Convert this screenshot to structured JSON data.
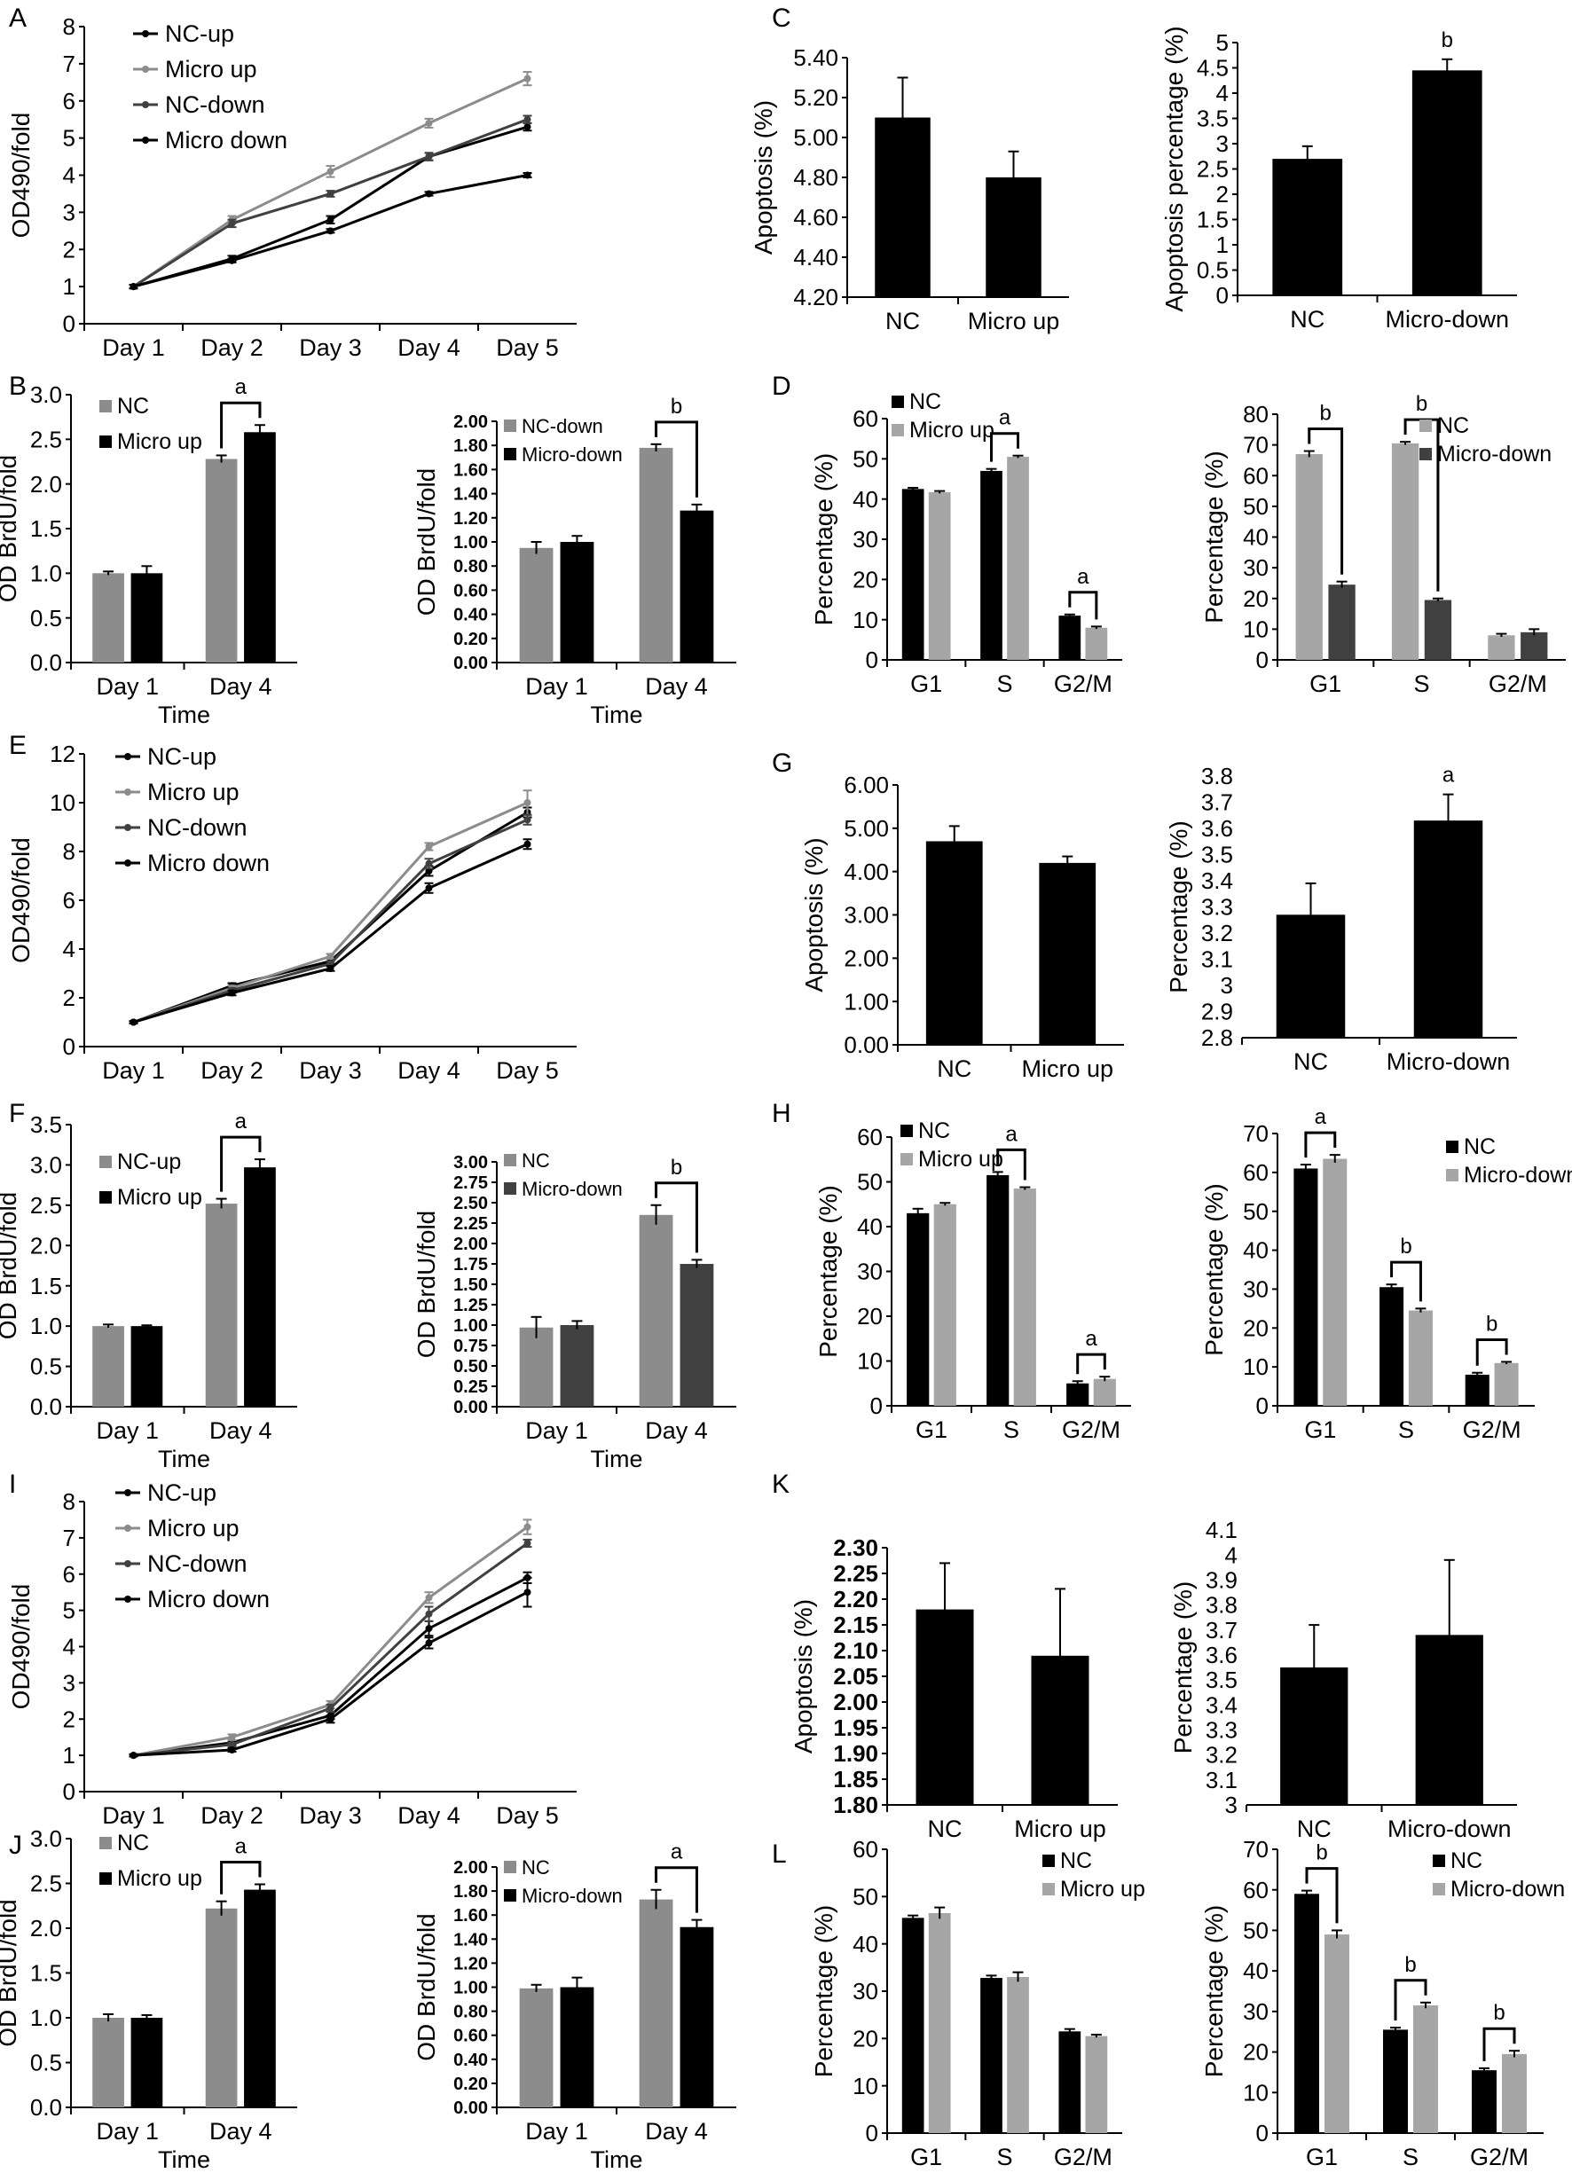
{
  "colors": {
    "black": "#000000",
    "gray": "#8c8c8c",
    "lightgray": "#a6a6a6",
    "dark": "#404040"
  },
  "chart_data": [
    {
      "id": "A",
      "panel_label": "A",
      "type": "line",
      "categories": [
        "Day 1",
        "Day 2",
        "Day 3",
        "Day 4",
        "Day 5"
      ],
      "ylabel": "OD490/fold",
      "ylim": [
        0,
        8
      ],
      "yticks": [
        "0",
        "1",
        "2",
        "3",
        "4",
        "5",
        "6",
        "7",
        "8"
      ],
      "series": [
        {
          "name": "NC-up",
          "values": [
            1,
            1.75,
            2.8,
            4.5,
            5.3
          ],
          "err": [
            0.05,
            0.08,
            0.1,
            0.1,
            0.1
          ]
        },
        {
          "name": "Micro up",
          "values": [
            1,
            2.8,
            4.1,
            5.4,
            6.6
          ],
          "err": [
            0.05,
            0.1,
            0.15,
            0.12,
            0.18
          ]
        },
        {
          "name": "NC-down",
          "values": [
            1,
            2.7,
            3.5,
            4.5,
            5.5
          ],
          "err": [
            0.05,
            0.1,
            0.08,
            0.1,
            0.1
          ]
        },
        {
          "name": "Micro down",
          "values": [
            1,
            1.7,
            2.5,
            3.5,
            4.0
          ],
          "err": [
            0.05,
            0.05,
            0.05,
            0.05,
            0.06
          ]
        }
      ]
    },
    {
      "id": "B1",
      "panel_label": "B",
      "type": "bar",
      "categories": [
        "Day 1",
        "Day 4"
      ],
      "xlabel": "Time",
      "ylabel": "OD BrdU/fold",
      "ylim": [
        0,
        3
      ],
      "yticks": [
        "0.0",
        "0.5",
        "1.0",
        "1.5",
        "2.0",
        "2.5",
        "3.0"
      ],
      "series": [
        {
          "name": "NC",
          "values": [
            1.0,
            2.28
          ],
          "err": [
            0.02,
            0.04
          ]
        },
        {
          "name": "Micro up",
          "values": [
            1.0,
            2.58
          ],
          "err": [
            0.08,
            0.08
          ]
        }
      ],
      "sig": [
        {
          "category": 1,
          "label": "a"
        }
      ]
    },
    {
      "id": "B2",
      "type": "bar",
      "categories": [
        "Day 1",
        "Day 4"
      ],
      "xlabel": "Time",
      "ylabel": "OD BrdU/fold",
      "ylim": [
        0,
        2
      ],
      "yticks": [
        "0.00",
        "0.20",
        "0.40",
        "0.60",
        "0.80",
        "1.00",
        "1.20",
        "1.40",
        "1.60",
        "1.80",
        "2.00"
      ],
      "series": [
        {
          "name": "NC-down",
          "values": [
            0.95,
            1.78
          ],
          "err": [
            0.05,
            0.03
          ]
        },
        {
          "name": "Micro-down",
          "values": [
            1.0,
            1.26
          ],
          "err": [
            0.05,
            0.05
          ]
        }
      ],
      "sig": [
        {
          "category": 1,
          "label": "b"
        }
      ]
    },
    {
      "id": "C1",
      "panel_label": "C",
      "type": "bar",
      "categories": [
        "NC",
        "Micro up"
      ],
      "ylabel": "Apoptosis (%)",
      "ylim": [
        4.2,
        5.4
      ],
      "yticks": [
        "4.20",
        "4.40",
        "4.60",
        "4.80",
        "5.00",
        "5.20",
        "5.40"
      ],
      "series": [
        {
          "name": "",
          "values": [
            5.1,
            4.8
          ],
          "err": [
            0.2,
            0.13
          ]
        }
      ]
    },
    {
      "id": "C2",
      "type": "bar",
      "categories": [
        "NC",
        "Micro-down"
      ],
      "ylabel": "Apoptosis percentage (%)",
      "ylim": [
        0,
        5
      ],
      "yticks": [
        "0",
        "0.5",
        "1",
        "1.5",
        "2",
        "2.5",
        "3",
        "3.5",
        "4",
        "4.5",
        "5"
      ],
      "series": [
        {
          "name": "",
          "values": [
            2.7,
            4.45
          ],
          "err": [
            0.25,
            0.22
          ]
        }
      ],
      "top_labels": [
        "",
        "b"
      ]
    },
    {
      "id": "D1",
      "panel_label": "D",
      "type": "bar",
      "categories": [
        "G1",
        "S",
        "G2/M"
      ],
      "ylabel": "Percentage (%)",
      "ylim": [
        0,
        60
      ],
      "yticks": [
        "0",
        "10",
        "20",
        "30",
        "40",
        "50",
        "60"
      ],
      "series": [
        {
          "name": "NC",
          "values": [
            42.5,
            47,
            11
          ],
          "err": [
            0.3,
            0.5,
            0.3
          ]
        },
        {
          "name": "Micro up",
          "values": [
            41.7,
            50.5,
            8
          ],
          "err": [
            0.3,
            0.3,
            0.3
          ]
        }
      ],
      "sig": [
        {
          "category": 1,
          "label": "a"
        },
        {
          "category": 2,
          "label": "a"
        }
      ]
    },
    {
      "id": "D2",
      "type": "bar",
      "categories": [
        "G1",
        "S",
        "G2/M"
      ],
      "ylabel": "Percentage (%)",
      "ylim": [
        0,
        80
      ],
      "yticks": [
        "0",
        "10",
        "20",
        "30",
        "40",
        "50",
        "60",
        "70",
        "80"
      ],
      "series": [
        {
          "name": "NC",
          "values": [
            67,
            70.5,
            8
          ],
          "err": [
            1,
            0.5,
            0.5
          ]
        },
        {
          "name": "Micro-down",
          "values": [
            24.5,
            19.5,
            9
          ],
          "err": [
            1,
            0.5,
            1
          ]
        }
      ],
      "sig": [
        {
          "category": 0,
          "label": "b"
        },
        {
          "category": 1,
          "label": "b"
        }
      ]
    },
    {
      "id": "E",
      "panel_label": "E",
      "type": "line",
      "categories": [
        "Day 1",
        "Day 2",
        "Day 3",
        "Day 4",
        "Day 5"
      ],
      "ylabel": "OD490/fold",
      "ylim": [
        0,
        12
      ],
      "yticks": [
        "0",
        "2",
        "4",
        "6",
        "8",
        "10",
        "12"
      ],
      "series": [
        {
          "name": "NC-up",
          "values": [
            1,
            2.5,
            3.5,
            7.2,
            9.6
          ],
          "err": [
            0.05,
            0.1,
            0.1,
            0.2,
            0.2
          ]
        },
        {
          "name": "Micro up",
          "values": [
            1,
            2.4,
            3.7,
            8.2,
            10.0
          ],
          "err": [
            0.05,
            0.1,
            0.1,
            0.15,
            0.5
          ]
        },
        {
          "name": "NC-down",
          "values": [
            1,
            2.3,
            3.4,
            7.5,
            9.3
          ],
          "err": [
            0.05,
            0.1,
            0.1,
            0.2,
            0.2
          ]
        },
        {
          "name": "Micro down",
          "values": [
            1,
            2.2,
            3.2,
            6.5,
            8.3
          ],
          "err": [
            0.05,
            0.1,
            0.1,
            0.2,
            0.2
          ]
        }
      ]
    },
    {
      "id": "F1",
      "panel_label": "F",
      "type": "bar",
      "categories": [
        "Day 1",
        "Day 4"
      ],
      "xlabel": "Time",
      "ylabel": "OD BrdU/fold",
      "ylim": [
        0,
        3.5
      ],
      "yticks": [
        "0.0",
        "0.5",
        "1.0",
        "1.5",
        "2.0",
        "2.5",
        "3.0",
        "3.5"
      ],
      "series": [
        {
          "name": "NC-up",
          "values": [
            1.0,
            2.52
          ],
          "err": [
            0.02,
            0.06
          ]
        },
        {
          "name": "Micro up",
          "values": [
            1.0,
            2.97
          ],
          "err": [
            0.01,
            0.1
          ]
        }
      ],
      "sig": [
        {
          "category": 1,
          "label": "a"
        }
      ]
    },
    {
      "id": "F2",
      "type": "bar",
      "categories": [
        "Day 1",
        "Day 4"
      ],
      "xlabel": "Time",
      "ylabel": "OD BrdU/fold",
      "ylim": [
        0,
        3
      ],
      "yticks": [
        "0.00",
        "0.25",
        "0.50",
        "0.75",
        "1.00",
        "1.25",
        "1.50",
        "1.75",
        "2.00",
        "2.25",
        "2.50",
        "2.75",
        "3.00"
      ],
      "series": [
        {
          "name": "NC",
          "values": [
            0.97,
            2.35
          ],
          "err": [
            0.13,
            0.12
          ]
        },
        {
          "name": "Micro-down",
          "values": [
            1.0,
            1.75
          ],
          "err": [
            0.05,
            0.05
          ]
        }
      ],
      "sig": [
        {
          "category": 1,
          "label": "b"
        }
      ]
    },
    {
      "id": "G1",
      "panel_label": "G",
      "type": "bar",
      "categories": [
        "NC",
        "Micro up"
      ],
      "ylabel": "Apoptosis (%)",
      "ylim": [
        0,
        6
      ],
      "yticks": [
        "0.00",
        "1.00",
        "2.00",
        "3.00",
        "4.00",
        "5.00",
        "6.00"
      ],
      "series": [
        {
          "name": "",
          "values": [
            4.7,
            4.2
          ],
          "err": [
            0.35,
            0.15
          ]
        }
      ]
    },
    {
      "id": "G2",
      "type": "bar",
      "categories": [
        "NC",
        "Micro-down"
      ],
      "ylabel": "Percentage (%)",
      "ylim": [
        2.8,
        3.8
      ],
      "yticks": [
        "2.8",
        "2.9",
        "3",
        "3.1",
        "3.2",
        "3.3",
        "3.4",
        "3.5",
        "3.6",
        "3.7",
        "3.8"
      ],
      "series": [
        {
          "name": "",
          "values": [
            3.27,
            3.63
          ],
          "err": [
            0.12,
            0.1
          ]
        }
      ],
      "top_labels": [
        "",
        "a"
      ]
    },
    {
      "id": "H1",
      "panel_label": "H",
      "type": "bar",
      "categories": [
        "G1",
        "S",
        "G2/M"
      ],
      "ylabel": "Percentage (%)",
      "ylim": [
        0,
        60
      ],
      "yticks": [
        "0",
        "10",
        "20",
        "30",
        "40",
        "50",
        "60"
      ],
      "series": [
        {
          "name": "NC",
          "values": [
            43,
            51.5,
            5
          ],
          "err": [
            1,
            0.7,
            0.5
          ]
        },
        {
          "name": "Micro up",
          "values": [
            45,
            48.5,
            6
          ],
          "err": [
            0.3,
            0.3,
            0.5
          ]
        }
      ],
      "sig": [
        {
          "category": 1,
          "label": "a"
        },
        {
          "category": 2,
          "label": "a"
        }
      ]
    },
    {
      "id": "H2",
      "type": "bar",
      "categories": [
        "G1",
        "S",
        "G2/M"
      ],
      "ylabel": "Percentage (%)",
      "ylim": [
        0,
        70
      ],
      "yticks": [
        "0",
        "10",
        "20",
        "30",
        "40",
        "50",
        "60",
        "70"
      ],
      "series": [
        {
          "name": "NC",
          "values": [
            61,
            30.5,
            8
          ],
          "err": [
            1,
            0.7,
            0.5
          ]
        },
        {
          "name": "Micro-down",
          "values": [
            63.5,
            24.5,
            11
          ],
          "err": [
            1,
            0.5,
            0.3
          ]
        }
      ],
      "sig": [
        {
          "category": 0,
          "label": "a"
        },
        {
          "category": 1,
          "label": "b"
        },
        {
          "category": 2,
          "label": "b"
        }
      ]
    },
    {
      "id": "I",
      "panel_label": "I",
      "type": "line",
      "categories": [
        "Day 1",
        "Day 2",
        "Day 3",
        "Day 4",
        "Day 5"
      ],
      "ylabel": "OD490/fold",
      "ylim": [
        0,
        8
      ],
      "yticks": [
        "0",
        "1",
        "2",
        "3",
        "4",
        "5",
        "6",
        "7",
        "8"
      ],
      "series": [
        {
          "name": "NC-up",
          "values": [
            1,
            1.35,
            2.1,
            4.5,
            5.9
          ],
          "err": [
            0.03,
            0.05,
            0.1,
            0.2,
            0.15
          ]
        },
        {
          "name": "Micro up",
          "values": [
            1,
            1.5,
            2.4,
            5.35,
            7.3
          ],
          "err": [
            0.03,
            0.08,
            0.1,
            0.15,
            0.2
          ]
        },
        {
          "name": "NC-down",
          "values": [
            1,
            1.3,
            2.3,
            4.9,
            6.85
          ],
          "err": [
            0.03,
            0.05,
            0.1,
            0.2,
            0.1
          ]
        },
        {
          "name": "Micro down",
          "values": [
            1,
            1.15,
            2.0,
            4.1,
            5.5
          ],
          "err": [
            0.03,
            0.05,
            0.1,
            0.15,
            0.4
          ]
        }
      ]
    },
    {
      "id": "J1",
      "panel_label": "J",
      "type": "bar",
      "categories": [
        "Day 1",
        "Day 4"
      ],
      "xlabel": "Time",
      "ylabel": "OD BrdU/fold",
      "ylim": [
        0,
        3
      ],
      "yticks": [
        "0.0",
        "0.5",
        "1.0",
        "1.5",
        "2.0",
        "2.5",
        "3.0"
      ],
      "series": [
        {
          "name": "NC",
          "values": [
            1.0,
            2.22
          ],
          "err": [
            0.04,
            0.08
          ]
        },
        {
          "name": "Micro up",
          "values": [
            1.0,
            2.43
          ],
          "err": [
            0.03,
            0.06
          ]
        }
      ],
      "sig": [
        {
          "category": 1,
          "label": "a"
        }
      ]
    },
    {
      "id": "J2",
      "type": "bar",
      "categories": [
        "Day 1",
        "Day 4"
      ],
      "xlabel": "Time",
      "ylabel": "OD BrdU/fold",
      "ylim": [
        0,
        2
      ],
      "yticks": [
        "0.00",
        "0.20",
        "0.40",
        "0.60",
        "0.80",
        "1.00",
        "1.20",
        "1.40",
        "1.60",
        "1.80",
        "2.00"
      ],
      "series": [
        {
          "name": "NC",
          "values": [
            0.99,
            1.73
          ],
          "err": [
            0.03,
            0.08
          ]
        },
        {
          "name": "Micro-down",
          "values": [
            1.0,
            1.5
          ],
          "err": [
            0.08,
            0.06
          ]
        }
      ],
      "sig": [
        {
          "category": 1,
          "label": "a"
        }
      ]
    },
    {
      "id": "K1",
      "panel_label": "K",
      "type": "bar",
      "categories": [
        "NC",
        "Micro up"
      ],
      "ylabel": "Apoptosis (%)",
      "ylim": [
        1.8,
        2.3
      ],
      "yticks": [
        "1.80",
        "1.85",
        "1.90",
        "1.95",
        "2.00",
        "2.05",
        "2.10",
        "2.15",
        "2.20",
        "2.25",
        "2.30"
      ],
      "series": [
        {
          "name": "",
          "values": [
            2.18,
            2.09
          ],
          "err": [
            0.09,
            0.13
          ]
        }
      ]
    },
    {
      "id": "K2",
      "type": "bar",
      "categories": [
        "NC",
        "Micro-down"
      ],
      "ylabel": "Percentage (%)",
      "ylim": [
        3,
        4.1
      ],
      "yticks": [
        "3",
        "3.1",
        "3.2",
        "3.3",
        "3.4",
        "3.5",
        "3.6",
        "3.7",
        "3.8",
        "3.9",
        "4",
        "4.1"
      ],
      "series": [
        {
          "name": "",
          "values": [
            3.55,
            3.68
          ],
          "err": [
            0.17,
            0.3
          ]
        }
      ]
    },
    {
      "id": "L1",
      "panel_label": "L",
      "type": "bar",
      "categories": [
        "G1",
        "S",
        "G2/M"
      ],
      "ylabel": "Percentage (%)",
      "ylim": [
        0,
        60
      ],
      "yticks": [
        "0",
        "10",
        "20",
        "30",
        "40",
        "50",
        "60"
      ],
      "series": [
        {
          "name": "NC",
          "values": [
            45.5,
            32.8,
            21.5
          ],
          "err": [
            0.5,
            0.5,
            0.5
          ]
        },
        {
          "name": "Micro up",
          "values": [
            46.5,
            33,
            20.5
          ],
          "err": [
            1.2,
            1,
            0.3
          ]
        }
      ]
    },
    {
      "id": "L2",
      "type": "bar",
      "categories": [
        "G1",
        "S",
        "G2/M"
      ],
      "ylabel": "Percentage (%)",
      "ylim": [
        0,
        70
      ],
      "yticks": [
        "0",
        "10",
        "20",
        "30",
        "40",
        "50",
        "60",
        "70"
      ],
      "series": [
        {
          "name": "NC",
          "values": [
            59,
            25.5,
            15.5
          ],
          "err": [
            0.8,
            0.5,
            0.5
          ]
        },
        {
          "name": "Micro-down",
          "values": [
            49,
            31.5,
            19.5
          ],
          "err": [
            1,
            0.7,
            0.8
          ]
        }
      ],
      "sig": [
        {
          "category": 0,
          "label": "b"
        },
        {
          "category": 1,
          "label": "b"
        },
        {
          "category": 2,
          "label": "b"
        }
      ]
    }
  ]
}
